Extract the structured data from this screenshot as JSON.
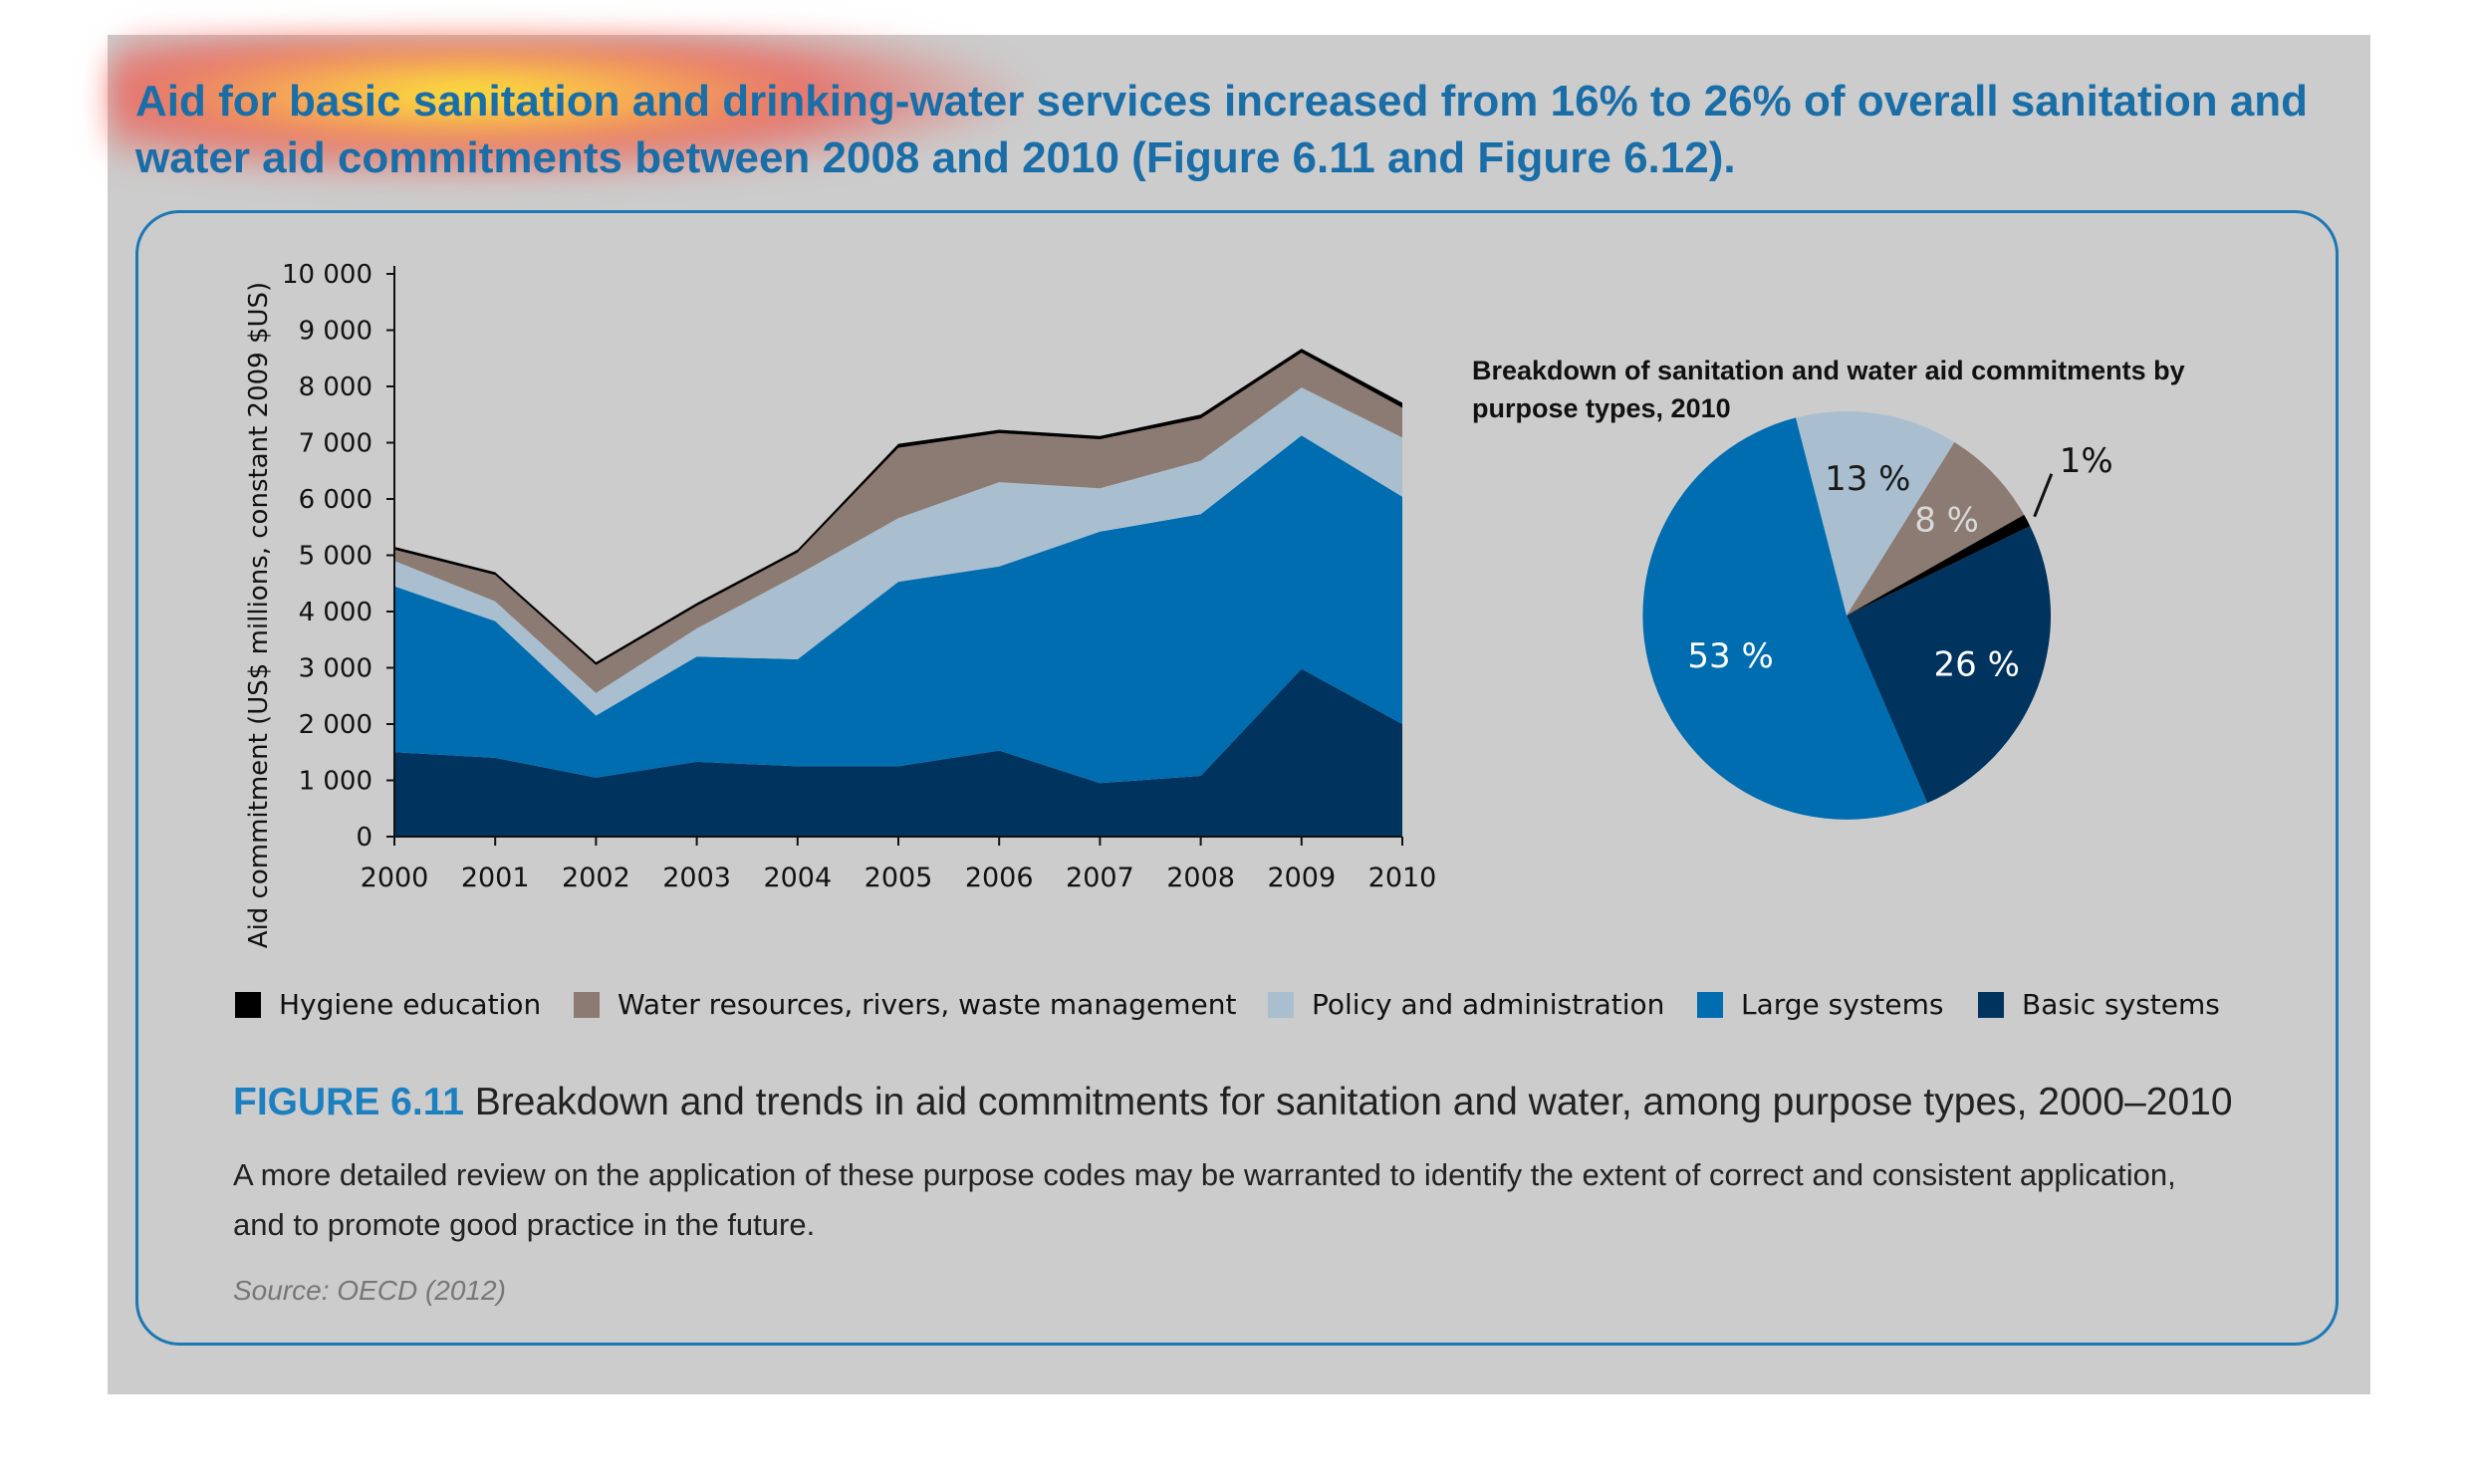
{
  "intro_text": "Aid for basic sanitation and drinking-water services increased from 16% to 26% of overall sanitation and water aid commitments between 2008 and 2010 (Figure 6.11 and Figure 6.12).",
  "colors": {
    "hygiene": "#000000",
    "water_resources": "#8c7b73",
    "policy": "#a9bfd0",
    "large": "#006db0",
    "basic": "#00335e"
  },
  "legend": [
    {
      "key": "hygiene",
      "label": "Hygiene education"
    },
    {
      "key": "water_resources",
      "label": "Water resources, rivers, waste management"
    },
    {
      "key": "policy",
      "label": "Policy and administration"
    },
    {
      "key": "large",
      "label": "Large systems"
    },
    {
      "key": "basic",
      "label": "Basic systems"
    }
  ],
  "figure": {
    "number": "FIGURE 6.11",
    "title": "Breakdown and trends in aid commitments for sanitation and water, among purpose types, 2000–2010",
    "note": "A more detailed review on the application of these purpose codes may be warranted to identify the extent of correct and consistent application, and to promote good practice in the future.",
    "source": "Source: OECD (2012)"
  },
  "chart_data": [
    {
      "type": "area",
      "stacked": true,
      "ylabel": "Aid commitment (US$ millions, constant 2009 $US)",
      "xlabel": "",
      "ylim": [
        0,
        10000
      ],
      "yticks": [
        "0",
        "1 000",
        "2 000",
        "3 000",
        "4 000",
        "5 000",
        "6 000",
        "7 000",
        "8 000",
        "9 000",
        "10 000"
      ],
      "x": [
        "2000",
        "2001",
        "2002",
        "2003",
        "2004",
        "2005",
        "2006",
        "2007",
        "2008",
        "2009",
        "2010"
      ],
      "series": [
        {
          "name": "Basic systems",
          "key": "basic",
          "values": [
            1500,
            1400,
            1050,
            1330,
            1250,
            1250,
            1530,
            950,
            1080,
            2980,
            2000
          ]
        },
        {
          "name": "Large systems",
          "key": "large",
          "values": [
            2950,
            2430,
            1100,
            1870,
            1900,
            3280,
            3270,
            4470,
            4650,
            4150,
            4040
          ]
        },
        {
          "name": "Policy and administration",
          "key": "policy",
          "values": [
            450,
            350,
            400,
            500,
            1500,
            1130,
            1500,
            770,
            950,
            850,
            1050
          ]
        },
        {
          "name": "Water resources, rivers, waste management",
          "key": "water_resources",
          "values": [
            200,
            470,
            500,
            400,
            400,
            1250,
            870,
            870,
            750,
            620,
            530
          ]
        },
        {
          "name": "Hygiene education",
          "key": "hygiene",
          "values": [
            50,
            50,
            50,
            50,
            50,
            70,
            60,
            60,
            70,
            70,
            90
          ]
        }
      ],
      "grid": false
    },
    {
      "type": "pie",
      "title": "Breakdown of sanitation and water aid commitments by purpose types, 2010",
      "slices": [
        {
          "name": "Policy and administration",
          "key": "policy",
          "value": 13,
          "label": "13 %"
        },
        {
          "name": "Water resources, rivers, waste management",
          "key": "water_resources",
          "value": 8,
          "label": "8 %"
        },
        {
          "name": "Hygiene education",
          "key": "hygiene",
          "value": 1,
          "label": "1%"
        },
        {
          "name": "Basic systems",
          "key": "basic",
          "value": 26,
          "label": "26 %"
        },
        {
          "name": "Large systems",
          "key": "large",
          "value": 53,
          "label": "53 %"
        }
      ]
    }
  ]
}
